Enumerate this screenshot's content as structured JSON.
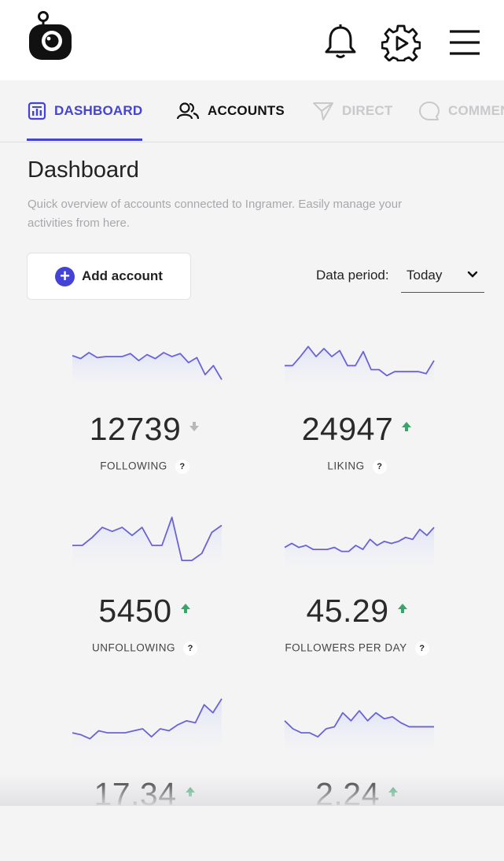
{
  "header": {
    "logo_icon": "robot-camera-logo-icon",
    "icons": [
      "bell-icon",
      "play-gear-icon",
      "hamburger-menu-icon"
    ]
  },
  "tabs": [
    {
      "label": "DASHBOARD",
      "icon": "bar-chart-icon",
      "active": true
    },
    {
      "label": "ACCOUNTS",
      "icon": "users-icon",
      "active": false
    },
    {
      "label": "DIRECT",
      "icon": "send-icon",
      "active": false
    },
    {
      "label": "COMMENTS",
      "icon": "comment-icon",
      "active": false
    }
  ],
  "page": {
    "title": "Dashboard",
    "description": "Quick overview of accounts connected to Ingramer. Easily manage your activities from here."
  },
  "add_account": {
    "label": "Add account"
  },
  "data_period": {
    "label": "Data period:",
    "value": "Today"
  },
  "colors": {
    "accent": "#4343d6",
    "up_arrow": "#3aa56b",
    "down_arrow": "#b8b8bc",
    "spark_line": "#6a63d6"
  },
  "stats": [
    {
      "value": "12739",
      "caption": "FOLLOWING",
      "trend": "down",
      "help": "?",
      "spark": [
        30,
        27,
        33,
        28,
        29,
        29,
        29,
        32,
        25,
        31,
        27,
        33,
        29,
        32,
        23,
        28,
        11,
        20,
        6
      ]
    },
    {
      "value": "24947",
      "caption": "LIKING",
      "trend": "up",
      "help": "?",
      "spark": [
        20,
        20,
        29,
        39,
        29,
        37,
        29,
        35,
        20,
        20,
        34,
        16,
        16,
        10,
        14,
        14,
        14,
        14,
        12,
        25
      ]
    },
    {
      "value": "5450",
      "caption": "UNFOLLOWING",
      "trend": "up",
      "help": "?",
      "spark": [
        22,
        22,
        30,
        40,
        36,
        40,
        32,
        40,
        22,
        22,
        50,
        7,
        7,
        14,
        35,
        42
      ]
    },
    {
      "value": "45.29",
      "caption": "FOLLOWERS PER DAY",
      "trend": "up",
      "help": "?",
      "spark": [
        20,
        24,
        20,
        22,
        18,
        18,
        18,
        20,
        16,
        16,
        22,
        18,
        28,
        22,
        26,
        24,
        26,
        30,
        28,
        38,
        32,
        40
      ]
    },
    {
      "value": "17.34",
      "caption": "",
      "trend": "up",
      "help": "",
      "spark": [
        18,
        16,
        12,
        20,
        18,
        18,
        18,
        20,
        22,
        14,
        22,
        20,
        26,
        30,
        28,
        46,
        38,
        52
      ]
    },
    {
      "value": "2.24",
      "caption": "",
      "trend": "up",
      "help": "",
      "spark": [
        30,
        22,
        18,
        18,
        14,
        22,
        24,
        38,
        30,
        40,
        30,
        38,
        32,
        34,
        28,
        24,
        24,
        24,
        24
      ]
    }
  ]
}
